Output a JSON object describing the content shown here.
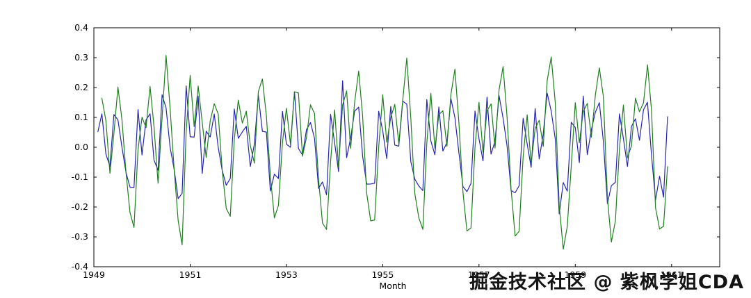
{
  "watermark": {
    "text": "掘金技术社区 @ 紫枫学姐CDA",
    "color": "#141414"
  },
  "chart_data": {
    "type": "line",
    "title": "",
    "xlabel": "Month",
    "ylabel": "",
    "xlim": [
      1949,
      1962
    ],
    "ylim": [
      -0.4,
      0.4
    ],
    "grid": false,
    "legend": "none",
    "x_unit": "year (monthly samples)",
    "xticks": {
      "values": [
        1949,
        1951,
        1953,
        1955,
        1957,
        1959,
        1961
      ],
      "labels": [
        "1949",
        "1951",
        "1953",
        "1955",
        "1957",
        "1959",
        "1961"
      ]
    },
    "yticks": {
      "values": [
        0.4,
        0.3,
        0.2,
        0.1,
        0.0,
        -0.1,
        -0.2,
        -0.3,
        -0.4
      ],
      "labels": [
        "0.4",
        "0.3",
        "0.2",
        "0.1",
        "0.0",
        "-0.1",
        "-0.2",
        "-0.3",
        "-0.4"
      ]
    },
    "series": [
      {
        "name": "blue-lag1-log-diff",
        "color": "#2424b4",
        "x_start": 1949.0833,
        "x_step": 0.083333,
        "values": [
          0.0522,
          0.112,
          -0.023,
          -0.064,
          0.1095,
          0.0919,
          0.0,
          -0.0845,
          -0.1335,
          -0.1347,
          0.1265,
          -0.0257,
          0.0913,
          0.1124,
          -0.0435,
          -0.077,
          0.1758,
          0.1319,
          0.0,
          -0.0731,
          -0.1722,
          -0.1542,
          0.2054,
          0.0351,
          0.0339,
          0.1712,
          -0.088,
          0.0537,
          0.0343,
          0.1115,
          0.0,
          -0.0784,
          -0.1272,
          -0.104,
          0.1283,
          0.0297,
          0.0513,
          0.0697,
          -0.0642,
          0.011,
          0.1751,
          0.0536,
          0.0509,
          -0.1466,
          -0.09,
          -0.1047,
          0.1203,
          0.0103,
          0.0,
          0.1857,
          -0.0042,
          -0.0259,
          0.0593,
          0.0829,
          0.0299,
          -0.1377,
          -0.1162,
          -0.159,
          0.1104,
          0.0148,
          -0.0817,
          0.2231,
          -0.0346,
          0.0304,
          0.1206,
          0.1345,
          -0.0303,
          -0.1233,
          -0.1231,
          -0.1205,
          0.1205,
          0.0552,
          -0.0379,
          0.1363,
          0.0075,
          0.0037,
          0.1542,
          0.1445,
          -0.0478,
          -0.1065,
          -0.1298,
          -0.145,
          0.1596,
          0.0213,
          -0.025,
          0.1348,
          -0.0127,
          0.0158,
          0.1622,
          0.0992,
          -0.0196,
          -0.1317,
          -0.1486,
          -0.1215,
          0.1215,
          0.029,
          -0.0455,
          0.1677,
          -0.0227,
          0.0199,
          0.1729,
          0.0971,
          0.0043,
          -0.1449,
          -0.1523,
          -0.1291,
          0.0968,
          0.0118,
          -0.0669,
          0.1297,
          -0.0394,
          0.0422,
          0.181,
          0.1211,
          0.0281,
          -0.2231,
          -0.1181,
          -0.1469,
          0.0835,
          0.066,
          -0.0513,
          0.1716,
          -0.0249,
          0.0588,
          0.1166,
          0.1493,
          0.0199,
          -0.1884,
          -0.1289,
          -0.1172,
          0.1122,
          0.0292,
          -0.0644,
          0.0692,
          0.0955,
          0.0236,
          0.1253,
          0.1508,
          -0.0261,
          -0.1764,
          -0.0971,
          -0.1673,
          0.1024
        ]
      },
      {
        "name": "green-lag2-log-diff",
        "color": "#1f7f1f",
        "x_start": 1949.1667,
        "x_step": 0.083333,
        "values": [
          0.1642,
          0.089,
          -0.087,
          0.0455,
          0.2014,
          0.0919,
          -0.0845,
          -0.218,
          -0.2682,
          -0.0082,
          0.1008,
          0.0656,
          0.2037,
          0.0689,
          -0.1205,
          0.0988,
          0.3077,
          0.1319,
          -0.0731,
          -0.2453,
          -0.3264,
          0.0512,
          0.2405,
          0.069,
          0.2051,
          0.0832,
          -0.0343,
          0.088,
          0.1458,
          0.1115,
          -0.0784,
          -0.2056,
          -0.2312,
          0.0243,
          0.158,
          0.081,
          0.121,
          0.0055,
          -0.0532,
          0.1861,
          0.2287,
          0.1045,
          -0.0957,
          -0.2366,
          -0.1947,
          0.0156,
          0.1306,
          0.0103,
          0.1857,
          0.1815,
          -0.0301,
          0.0334,
          0.1422,
          0.1128,
          -0.1078,
          -0.2539,
          -0.2752,
          -0.0486,
          0.1252,
          -0.0669,
          0.1414,
          0.1885,
          -0.0042,
          0.151,
          0.2551,
          0.1042,
          -0.1536,
          -0.2464,
          -0.2436,
          0.0,
          0.1757,
          0.0173,
          0.0984,
          0.1438,
          0.0112,
          0.1579,
          0.2987,
          0.0967,
          -0.1543,
          -0.2363,
          -0.2748,
          0.0146,
          0.1809,
          -0.0037,
          0.1098,
          0.1221,
          0.0031,
          0.178,
          0.2614,
          0.0796,
          -0.1513,
          -0.2803,
          -0.2701,
          0.0,
          0.1505,
          -0.0165,
          0.1222,
          0.145,
          -0.0028,
          0.1928,
          0.27,
          0.1014,
          -0.1406,
          -0.2972,
          -0.2814,
          -0.0323,
          0.1086,
          -0.0551,
          0.0628,
          0.0903,
          0.0028,
          0.2232,
          0.3021,
          0.1492,
          -0.195,
          -0.3412,
          -0.265,
          -0.0634,
          0.1495,
          0.0147,
          0.1203,
          0.1467,
          0.0339,
          0.1754,
          0.2659,
          0.1692,
          -0.1685,
          -0.3173,
          -0.2461,
          -0.005,
          0.1414,
          -0.0352,
          0.0048,
          0.1647,
          0.1191,
          0.1489,
          0.2761,
          0.1247,
          -0.2025,
          -0.2735,
          -0.2644,
          -0.0649
        ]
      }
    ]
  }
}
